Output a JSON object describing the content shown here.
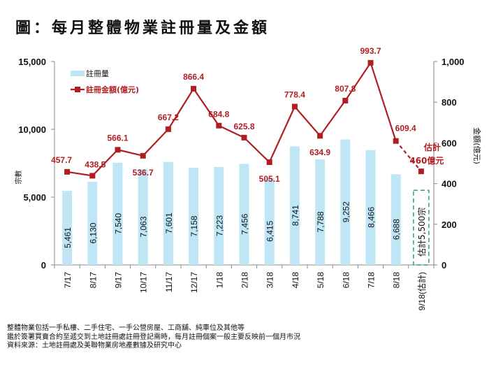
{
  "title": "圖：每月整體物業註冊量及金額",
  "chart_data": {
    "type": "bar+line",
    "categories": [
      "7/17",
      "8/17",
      "9/17",
      "10/17",
      "11/17",
      "12/17",
      "1/18",
      "2/18",
      "3/18",
      "4/18",
      "5/18",
      "6/18",
      "7/18",
      "8/18",
      "9/18(估計)"
    ],
    "series": [
      {
        "name": "註冊量",
        "type": "bar",
        "axis": "left",
        "color": "#bfe6f5",
        "values": [
          5461,
          6130,
          7540,
          7063,
          7601,
          7158,
          7223,
          7456,
          6415,
          8741,
          7788,
          9252,
          8466,
          6688,
          5500
        ],
        "labels": [
          "5,461",
          "6,130",
          "7,540",
          "7,063",
          "7,601",
          "7,158",
          "7,223",
          "7,456",
          "6,415",
          "8,741",
          "7,788",
          "9,252",
          "8,466",
          "6,688",
          "估計5,500宗"
        ],
        "estimated_last": true
      },
      {
        "name": "註冊金額(億元)",
        "type": "line",
        "axis": "right",
        "color": "#b01e23",
        "values": [
          457.7,
          438.5,
          566.1,
          536.7,
          667.2,
          866.4,
          684.8,
          625.8,
          505.1,
          778.4,
          634.9,
          807.8,
          993.7,
          609.4,
          460
        ],
        "labels": [
          "457.7",
          "438.5",
          "566.1",
          "536.7",
          "667.2",
          "866.4",
          "684.8",
          "625.8",
          "505.1",
          "778.4",
          "634.9",
          "807.8",
          "993.7",
          "609.4",
          "460億元"
        ],
        "estimate_prefix": "估計",
        "estimated_last": true
      }
    ],
    "left_axis": {
      "label": "宗數",
      "range": [
        0,
        15000
      ],
      "ticks": [
        "0",
        "5,000",
        "10,000",
        "15,000"
      ],
      "tick_values": [
        0,
        5000,
        10000,
        15000
      ]
    },
    "right_axis": {
      "label": "金額(億元)",
      "range": [
        0,
        1000
      ],
      "ticks": [
        "0",
        "200",
        "400",
        "600",
        "800",
        "1,000"
      ],
      "tick_values": [
        0,
        200,
        400,
        600,
        800,
        1000
      ]
    },
    "legend": {
      "position": "top-left",
      "entries": [
        "註冊量",
        "註冊金額(億元)"
      ]
    },
    "grid": false
  },
  "notes": [
    "整體物業包括一手私樓、二手住宅、一手公營房屋、工商舖、純車位及其他等",
    "鑑於簽署買賣合約至遞交到土地註冊處註冊登記需時，每月註冊個案一般主要反映前一個月市況",
    "資料來源：土地註冊處及美聯物業房地產數據及研究中心"
  ]
}
